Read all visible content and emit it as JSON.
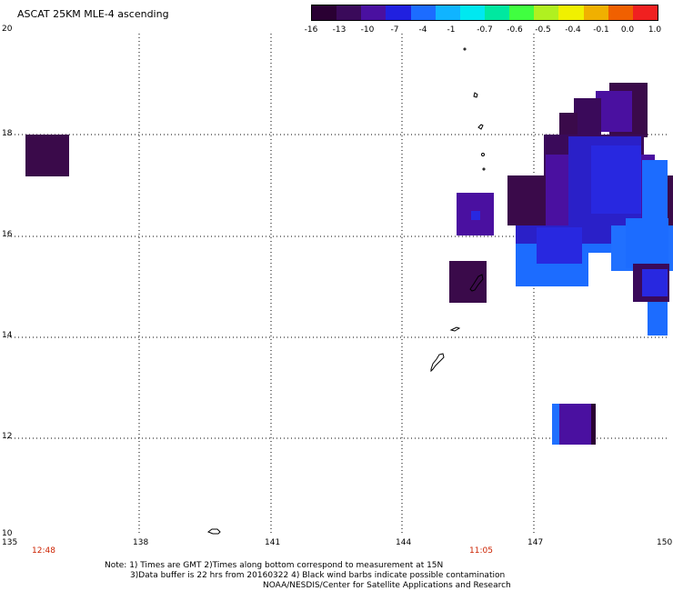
{
  "title": "ASCAT 25KM MLE-4 ascending",
  "colorbar": {
    "colors": [
      "#2a0033",
      "#3a0a5a",
      "#4a10a0",
      "#2020e0",
      "#1c6cff",
      "#10b4ff",
      "#00e8f0",
      "#00e8a0",
      "#40ff40",
      "#b0f020",
      "#f0f000",
      "#f0b000",
      "#f06000",
      "#f02020"
    ],
    "tick_labels": [
      "-16",
      "-13",
      "-10",
      "-7",
      "-4",
      "-1",
      "-0.7",
      "-0.6",
      "-0.5",
      "-0.4",
      "-0.1",
      "0.0",
      "1.0"
    ]
  },
  "axes": {
    "lon_ticks": [
      "135",
      "138",
      "141",
      "144",
      "147",
      "150"
    ],
    "lat_ticks": [
      "20",
      "18",
      "16",
      "14",
      "12",
      "10"
    ]
  },
  "times": {
    "left": "12:48",
    "right": "11:05"
  },
  "notes": {
    "line1": "Note: 1) Times are GMT 2)Times along bottom correspond to measurement at 15N",
    "line2": "3)Data buffer is 22 hrs from 20160322 4) Black wind barbs indicate possible contamination",
    "line3": "NOAA/NESDIS/Center for Satellite Applications and Research"
  }
}
